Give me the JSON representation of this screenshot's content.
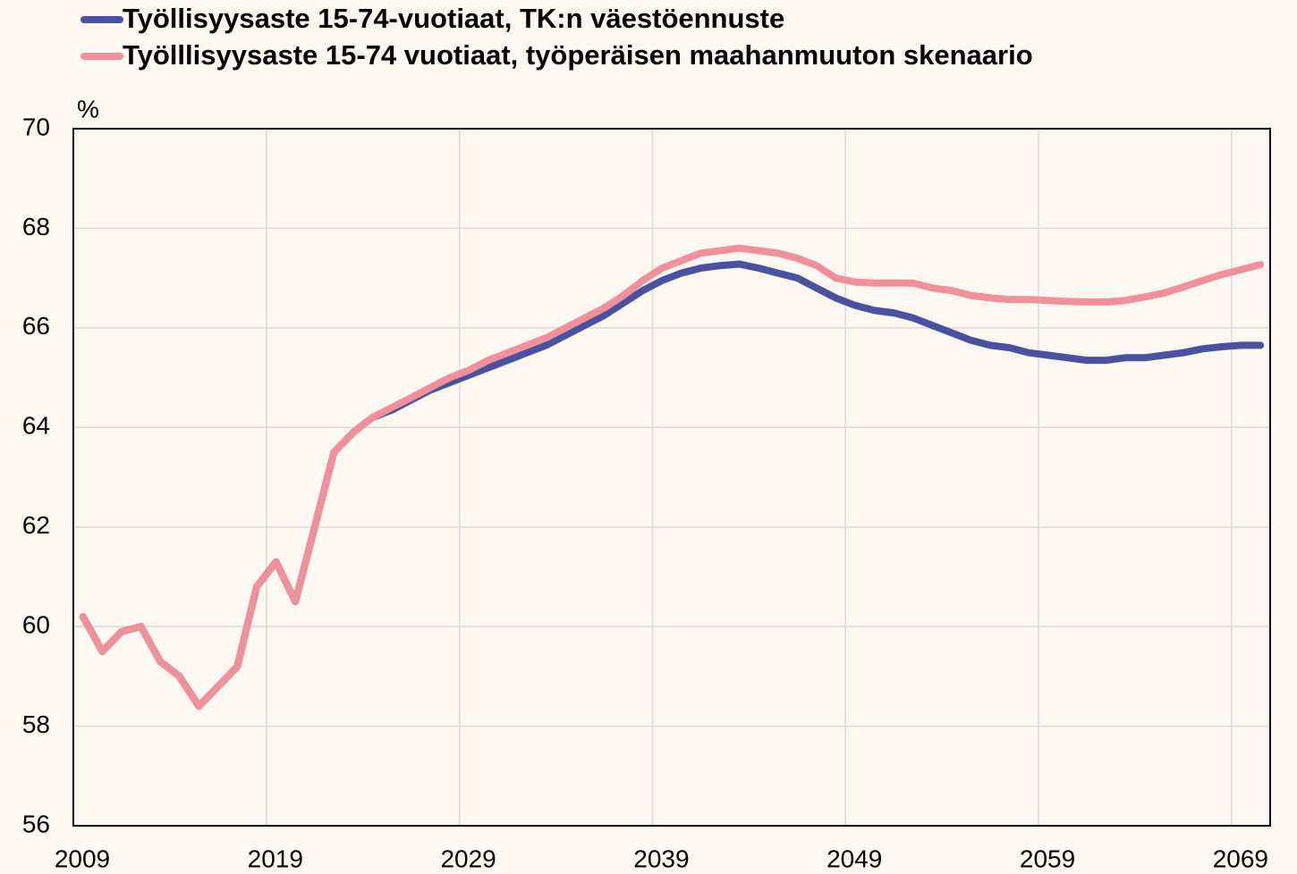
{
  "chart_data": {
    "type": "line",
    "y_label": "%",
    "categories": [
      "2009",
      null,
      null,
      null,
      null,
      null,
      null,
      null,
      null,
      null,
      "2019",
      null,
      null,
      null,
      null,
      null,
      null,
      null,
      null,
      null,
      "2029",
      null,
      null,
      null,
      null,
      null,
      null,
      null,
      null,
      null,
      "2039",
      null,
      null,
      null,
      null,
      null,
      null,
      null,
      null,
      null,
      "2049",
      null,
      null,
      null,
      null,
      null,
      null,
      null,
      null,
      null,
      "2059",
      null,
      null,
      null,
      null,
      null,
      null,
      null,
      null,
      null,
      "2069",
      null
    ],
    "series": [
      {
        "name": "Työllisyysaste 15-74-vuotiaat, TK:n väestöennuste",
        "color": "#4a52a0",
        "values": [
          60.2,
          59.5,
          59.9,
          60.0,
          59.3,
          59.0,
          58.4,
          58.8,
          59.2,
          60.8,
          61.3,
          60.5,
          62.0,
          63.5,
          63.9,
          64.2,
          64.35,
          64.55,
          64.75,
          64.9,
          65.05,
          65.2,
          65.35,
          65.5,
          65.65,
          65.85,
          66.05,
          66.25,
          66.5,
          66.75,
          66.95,
          67.1,
          67.2,
          67.25,
          67.28,
          67.2,
          67.1,
          67.0,
          66.8,
          66.6,
          66.45,
          66.35,
          66.3,
          66.2,
          66.05,
          65.9,
          65.75,
          65.65,
          65.6,
          65.5,
          65.45,
          65.4,
          65.35,
          65.35,
          65.4,
          65.4,
          65.45,
          65.5,
          65.58,
          65.62,
          65.65,
          65.65
        ]
      },
      {
        "name": "Työlllisyysaste 15-74 vuotiaat, työperäisen maahanmuuton skenaario",
        "color": "#f0909a",
        "values": [
          60.2,
          59.5,
          59.9,
          60.0,
          59.3,
          59.0,
          58.4,
          58.8,
          59.2,
          60.8,
          61.3,
          60.5,
          62.0,
          63.5,
          63.9,
          64.2,
          64.4,
          64.6,
          64.8,
          65.0,
          65.15,
          65.35,
          65.5,
          65.65,
          65.8,
          66.0,
          66.2,
          66.4,
          66.65,
          66.95,
          67.2,
          67.35,
          67.5,
          67.55,
          67.6,
          67.55,
          67.5,
          67.4,
          67.25,
          67.0,
          66.92,
          66.9,
          66.9,
          66.9,
          66.8,
          66.75,
          66.65,
          66.6,
          66.57,
          66.57,
          66.55,
          66.53,
          66.52,
          66.52,
          66.55,
          66.62,
          66.7,
          66.82,
          66.95,
          67.07,
          67.17,
          67.27
        ]
      }
    ],
    "ylim": [
      56,
      70
    ],
    "yticks": [
      56,
      58,
      60,
      62,
      64,
      66,
      68,
      70
    ],
    "grid": true
  }
}
